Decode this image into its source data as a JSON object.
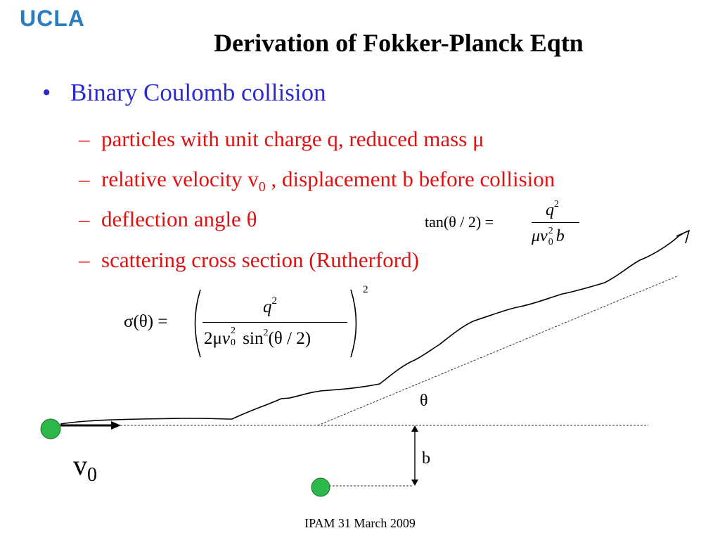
{
  "logo": {
    "text": "UCLA",
    "color": "#2b7bbf"
  },
  "title": "Derivation of Fokker-Planck Eqtn",
  "bullet": {
    "marker": "•",
    "text": "Binary Coulomb collision",
    "color": "#2a2ad0"
  },
  "subbullets": {
    "dash": "–",
    "color": "#e01010",
    "items": [
      {
        "text": "particles with unit charge q, reduced mass μ"
      },
      {
        "pre": "relative velocity v",
        "sub": "0",
        "post": " , displacement b before collision"
      },
      {
        "text": "deflection angle θ"
      },
      {
        "text": "scattering cross section (Rutherford)"
      }
    ]
  },
  "eq_tan": {
    "lhs": "tan(θ / 2) =",
    "num_base": "q",
    "num_sup": "2",
    "den_mu": "μ",
    "den_v": "v",
    "den_sup": "2",
    "den_sub": "0",
    "den_b": "b"
  },
  "eq_sigma": {
    "lhs": "σ(θ) =",
    "num_base": "q",
    "num_sup": "2",
    "den_coef": "2μ",
    "den_v": "v",
    "den_v_sup": "2",
    "den_v_sub": "0",
    "den_sin": " sin",
    "den_sin_sup": "2",
    "den_arg": "(θ / 2)",
    "outer_sup": "2"
  },
  "diagram": {
    "theta_label": "θ",
    "b_label": "b",
    "v0_base": "v",
    "v0_sub": "0",
    "particle_color": "#2db84a"
  },
  "footer": "IPAM 31 March 2009"
}
